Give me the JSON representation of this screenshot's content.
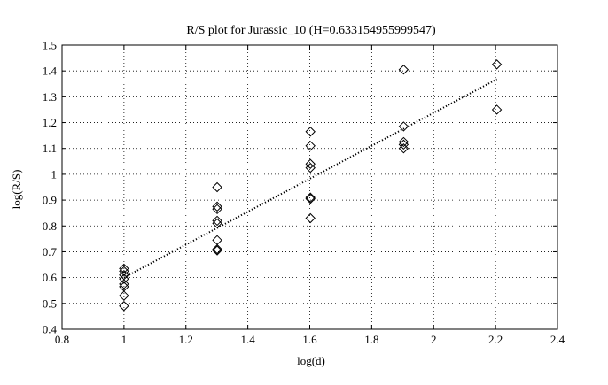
{
  "chart_data": {
    "type": "scatter",
    "title": "R/S plot for Jurassic_10 (H=0.633154955999547)",
    "xlabel": "log(d)",
    "ylabel": "log(R/S)",
    "xlim": [
      0.8,
      2.4
    ],
    "ylim": [
      0.4,
      1.5
    ],
    "xticks": [
      "0.8",
      "1",
      "1.2",
      "1.4",
      "1.6",
      "1.8",
      "2",
      "2.2",
      "2.4"
    ],
    "yticks": [
      "0.4",
      "0.5",
      "0.6",
      "0.7",
      "0.8",
      "0.9",
      "1",
      "1.1",
      "1.2",
      "1.3",
      "1.4",
      "1.5"
    ],
    "grid": true,
    "marker": "diamond",
    "points": [
      {
        "x": 1.0,
        "y": 0.49
      },
      {
        "x": 1.0,
        "y": 0.53
      },
      {
        "x": 1.0,
        "y": 0.565
      },
      {
        "x": 1.0,
        "y": 0.575
      },
      {
        "x": 1.0,
        "y": 0.595
      },
      {
        "x": 1.0,
        "y": 0.61
      },
      {
        "x": 1.0,
        "y": 0.625
      },
      {
        "x": 1.0,
        "y": 0.635
      },
      {
        "x": 1.30103,
        "y": 0.95
      },
      {
        "x": 1.30103,
        "y": 0.875
      },
      {
        "x": 1.30103,
        "y": 0.865
      },
      {
        "x": 1.30103,
        "y": 0.82
      },
      {
        "x": 1.30103,
        "y": 0.81
      },
      {
        "x": 1.30103,
        "y": 0.745
      },
      {
        "x": 1.30103,
        "y": 0.71
      },
      {
        "x": 1.30103,
        "y": 0.705
      },
      {
        "x": 1.60206,
        "y": 1.165
      },
      {
        "x": 1.60206,
        "y": 1.11
      },
      {
        "x": 1.60206,
        "y": 1.04
      },
      {
        "x": 1.60206,
        "y": 1.025
      },
      {
        "x": 1.60206,
        "y": 0.91
      },
      {
        "x": 1.60206,
        "y": 0.905
      },
      {
        "x": 1.60206,
        "y": 0.83
      },
      {
        "x": 1.90309,
        "y": 1.405
      },
      {
        "x": 1.90309,
        "y": 1.185
      },
      {
        "x": 1.90309,
        "y": 1.125
      },
      {
        "x": 1.90309,
        "y": 1.115
      },
      {
        "x": 1.90309,
        "y": 1.1
      },
      {
        "x": 2.20412,
        "y": 1.425
      },
      {
        "x": 2.20412,
        "y": 1.25
      }
    ],
    "fit_line": {
      "x": [
        1.0,
        2.20412
      ],
      "y": [
        0.6,
        1.368
      ],
      "style": "dotted"
    }
  }
}
